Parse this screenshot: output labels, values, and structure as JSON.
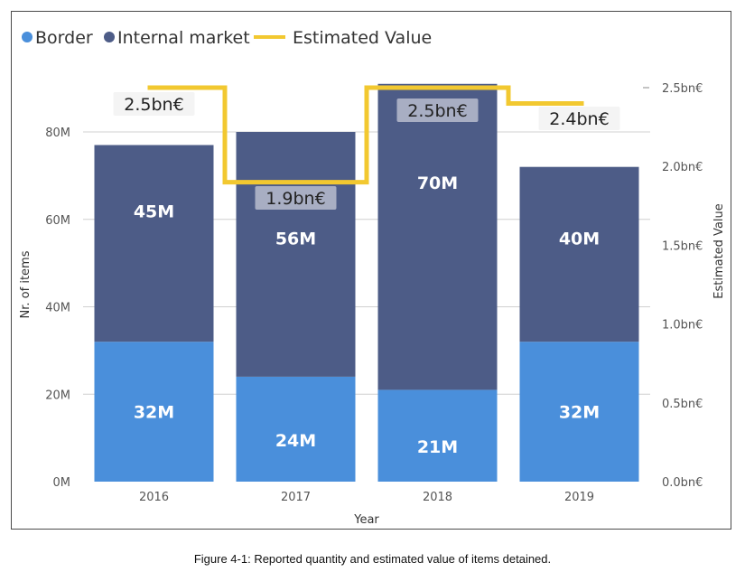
{
  "chart_data": {
    "type": "bar",
    "stacked": true,
    "categories": [
      "2016",
      "2017",
      "2018",
      "2019"
    ],
    "series": [
      {
        "name": "Border",
        "values": [
          32,
          24,
          21,
          32
        ],
        "labels": [
          "32M",
          "24M",
          "21M",
          "32M"
        ],
        "color": "#4a8fdb"
      },
      {
        "name": "Internal market",
        "values": [
          45,
          56,
          70,
          40
        ],
        "labels": [
          "45M",
          "56M",
          "70M",
          "40M"
        ],
        "color": "#4d5c87"
      }
    ],
    "line_series": {
      "name": "Estimated Value",
      "values": [
        2.5,
        1.9,
        2.5,
        2.4
      ],
      "labels": [
        "2.5bn€",
        "1.9bn€",
        "2.5bn€",
        "2.4bn€"
      ],
      "color": "#f2c830",
      "axis": "right"
    },
    "xlabel": "Year",
    "ylabel": "Nr. of items",
    "y2label": "Estimated Value",
    "ylim": [
      0,
      90
    ],
    "y2lim": [
      0,
      2.5
    ],
    "yticks": [
      0,
      20,
      40,
      60,
      80
    ],
    "yticklabels": [
      "0M",
      "20M",
      "40M",
      "60M",
      "80M"
    ],
    "y2ticks": [
      0,
      0.5,
      1.0,
      1.5,
      2.0,
      2.5
    ],
    "y2ticklabels": [
      "0.0bn€",
      "0.5bn€",
      "1.0bn€",
      "1.5bn€",
      "2.0bn€",
      "2.5bn€"
    ],
    "grid": true,
    "legend": "top-left"
  },
  "caption": "Figure 4-1: Reported quantity and estimated value of items detained."
}
